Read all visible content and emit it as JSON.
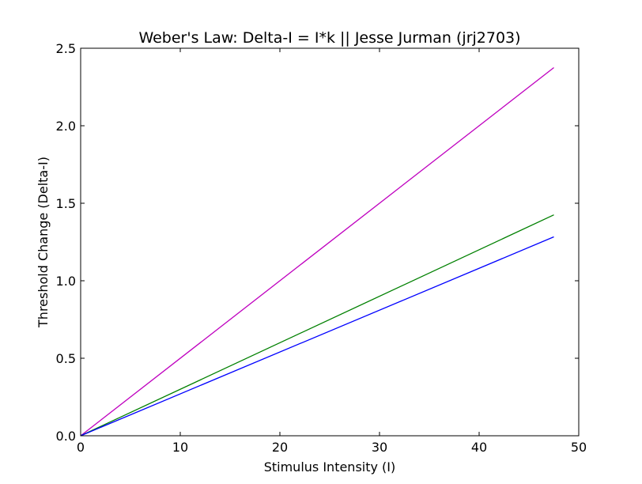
{
  "chart_data": {
    "type": "line",
    "title": "Weber's Law: Delta-I = I*k || Jesse Jurman (jrj2703)",
    "xlabel": "Stimulus Intensity (I)",
    "ylabel": "Threshold Change (Delta-I)",
    "xlim": [
      0,
      50
    ],
    "ylim": [
      0,
      2.5
    ],
    "x_ticks": [
      0,
      10,
      20,
      30,
      40,
      50
    ],
    "x_tick_labels": [
      "0",
      "10",
      "20",
      "30",
      "40",
      "50"
    ],
    "y_ticks": [
      0,
      0.5,
      1.0,
      1.5,
      2.0,
      2.5
    ],
    "y_tick_labels": [
      "0.0",
      "0.5",
      "1.0",
      "1.5",
      "2.0",
      "2.5"
    ],
    "grid": false,
    "series": [
      {
        "color": "#bf00bf",
        "x": [
          0,
          47.5
        ],
        "y": [
          0,
          2.375
        ]
      },
      {
        "color": "#008000",
        "x": [
          0,
          47.5
        ],
        "y": [
          0,
          1.425
        ]
      },
      {
        "color": "#0000ff",
        "x": [
          0,
          47.5
        ],
        "y": [
          0,
          1.283
        ]
      }
    ]
  }
}
